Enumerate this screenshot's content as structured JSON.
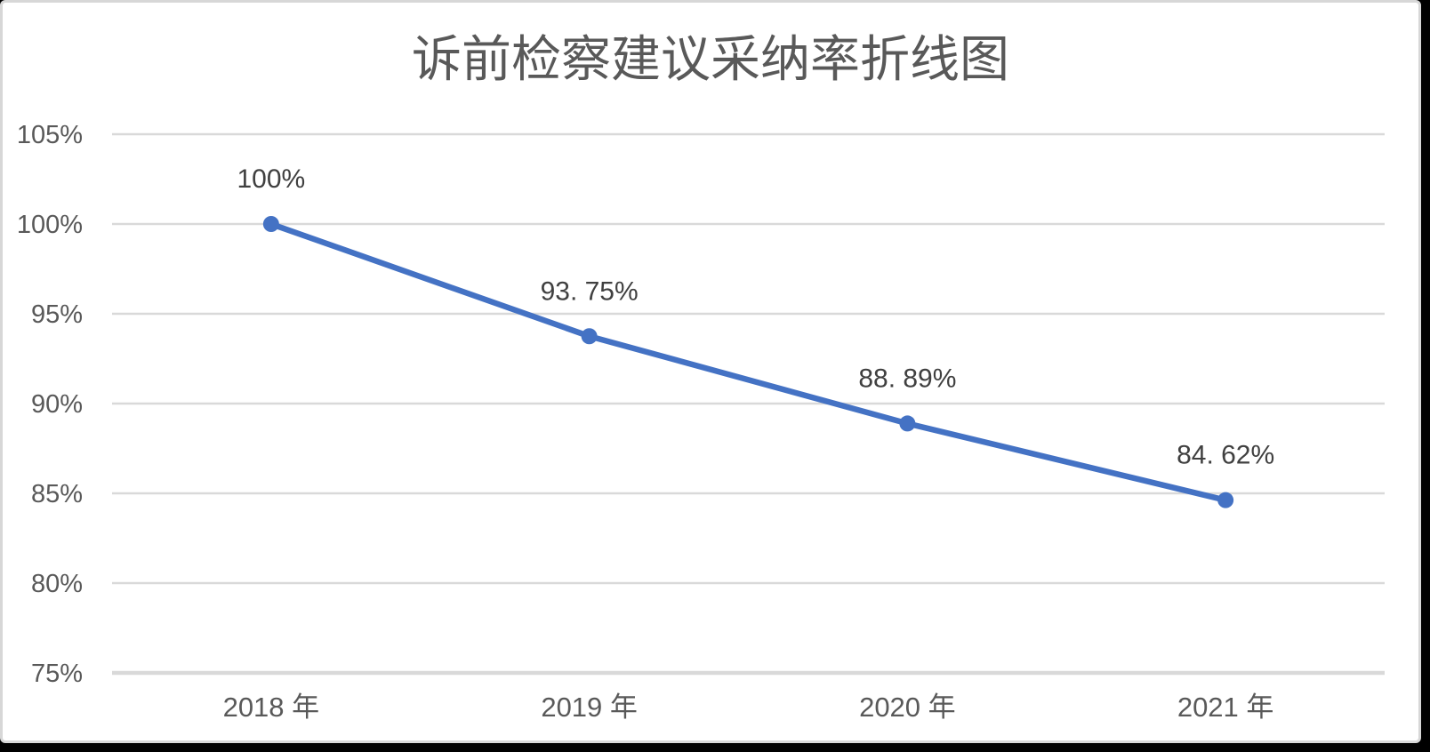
{
  "window": {
    "background": "#000000",
    "card_background": "#ffffff",
    "card_border": "#d7d7d7"
  },
  "chart_data": {
    "type": "line",
    "title": "诉前检察建议采纳率折线图",
    "x_axis": {
      "categories": [
        "2018 年",
        "2019 年",
        "2020 年",
        "2021 年"
      ]
    },
    "y_axis": {
      "min": 75,
      "max": 105,
      "step": 5,
      "ticks": [
        {
          "label": "105%",
          "value": 105
        },
        {
          "label": "100%",
          "value": 100
        },
        {
          "label": "95%",
          "value": 95
        },
        {
          "label": "90%",
          "value": 90
        },
        {
          "label": "85%",
          "value": 85
        },
        {
          "label": "80%",
          "value": 80
        },
        {
          "label": "75%",
          "value": 75
        }
      ]
    },
    "series": [
      {
        "values": [
          100,
          93.75,
          88.89,
          84.62
        ],
        "point_labels": [
          "100%",
          "93. 75%",
          "88. 89%",
          "84. 62%"
        ],
        "color": "#4472C4"
      }
    ],
    "grid": true,
    "legend": "none",
    "colors": {
      "gridline": "#D9D9D9",
      "axis_line": "#D9D9D9",
      "tick_text": "#595959",
      "data_label_text": "#404040",
      "title_text": "#595959"
    }
  }
}
